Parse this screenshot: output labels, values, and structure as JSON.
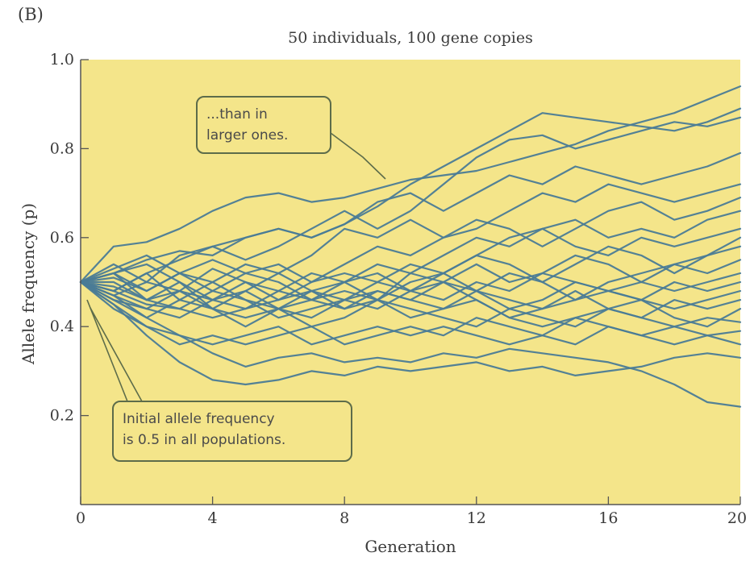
{
  "panel_letter": "(B)",
  "callouts": {
    "top": {
      "lines": [
        "...than in",
        "larger ones."
      ]
    },
    "bottom": {
      "lines": [
        "Initial allele frequency",
        "is 0.5 in all populations."
      ]
    }
  },
  "colors": {
    "plot_background": "#f4e58a",
    "line": "#4a7b96",
    "axis": "#555555",
    "callout_border": "#5d6c4a"
  },
  "chart_data": {
    "type": "line",
    "title": "50 individuals, 100 gene copies",
    "xlabel": "Generation",
    "ylabel": "Allele frequency (p)",
    "xlim": [
      0,
      20
    ],
    "ylim": [
      0,
      1.0
    ],
    "xticks": [
      0,
      4,
      8,
      12,
      16,
      20
    ],
    "yticks": [
      0.2,
      0.4,
      0.6,
      0.8,
      1.0
    ],
    "x": [
      0,
      1,
      2,
      3,
      4,
      5,
      6,
      7,
      8,
      9,
      10,
      11,
      12,
      13,
      14,
      15,
      16,
      17,
      18,
      19,
      20
    ],
    "series": [
      {
        "values": [
          0.5,
          0.58,
          0.59,
          0.62,
          0.66,
          0.69,
          0.7,
          0.68,
          0.69,
          0.71,
          0.73,
          0.74,
          0.75,
          0.77,
          0.79,
          0.81,
          0.84,
          0.86,
          0.88,
          0.91,
          0.94
        ]
      },
      {
        "values": [
          0.5,
          0.52,
          0.55,
          0.57,
          0.56,
          0.6,
          0.62,
          0.6,
          0.63,
          0.67,
          0.72,
          0.76,
          0.8,
          0.84,
          0.88,
          0.87,
          0.86,
          0.85,
          0.84,
          0.86,
          0.89
        ]
      },
      {
        "values": [
          0.5,
          0.54,
          0.5,
          0.56,
          0.58,
          0.55,
          0.58,
          0.62,
          0.66,
          0.62,
          0.66,
          0.72,
          0.78,
          0.82,
          0.83,
          0.8,
          0.82,
          0.84,
          0.86,
          0.85,
          0.87
        ]
      },
      {
        "values": [
          0.5,
          0.48,
          0.52,
          0.55,
          0.58,
          0.6,
          0.62,
          0.6,
          0.63,
          0.68,
          0.7,
          0.66,
          0.7,
          0.74,
          0.72,
          0.76,
          0.74,
          0.72,
          0.74,
          0.76,
          0.79
        ]
      },
      {
        "values": [
          0.5,
          0.52,
          0.48,
          0.52,
          0.5,
          0.54,
          0.52,
          0.56,
          0.62,
          0.6,
          0.64,
          0.6,
          0.62,
          0.66,
          0.7,
          0.68,
          0.72,
          0.7,
          0.68,
          0.7,
          0.72
        ]
      },
      {
        "values": [
          0.5,
          0.47,
          0.5,
          0.48,
          0.53,
          0.5,
          0.46,
          0.5,
          0.54,
          0.58,
          0.56,
          0.6,
          0.64,
          0.62,
          0.58,
          0.62,
          0.66,
          0.68,
          0.64,
          0.66,
          0.69
        ]
      },
      {
        "values": [
          0.5,
          0.53,
          0.56,
          0.52,
          0.55,
          0.52,
          0.54,
          0.5,
          0.52,
          0.5,
          0.54,
          0.52,
          0.56,
          0.6,
          0.62,
          0.64,
          0.6,
          0.62,
          0.6,
          0.64,
          0.66
        ]
      },
      {
        "values": [
          0.5,
          0.46,
          0.44,
          0.48,
          0.46,
          0.5,
          0.48,
          0.52,
          0.5,
          0.54,
          0.52,
          0.56,
          0.6,
          0.58,
          0.62,
          0.58,
          0.56,
          0.6,
          0.58,
          0.6,
          0.62
        ]
      },
      {
        "values": [
          0.5,
          0.52,
          0.46,
          0.5,
          0.44,
          0.48,
          0.52,
          0.48,
          0.46,
          0.5,
          0.48,
          0.52,
          0.56,
          0.54,
          0.5,
          0.54,
          0.58,
          0.56,
          0.52,
          0.56,
          0.6
        ]
      },
      {
        "values": [
          0.5,
          0.48,
          0.52,
          0.46,
          0.5,
          0.46,
          0.44,
          0.48,
          0.5,
          0.46,
          0.52,
          0.5,
          0.54,
          0.5,
          0.52,
          0.56,
          0.54,
          0.5,
          0.54,
          0.56,
          0.58
        ]
      },
      {
        "values": [
          0.5,
          0.51,
          0.48,
          0.52,
          0.48,
          0.52,
          0.5,
          0.46,
          0.44,
          0.48,
          0.46,
          0.5,
          0.48,
          0.52,
          0.5,
          0.46,
          0.5,
          0.52,
          0.54,
          0.52,
          0.55
        ]
      },
      {
        "values": [
          0.5,
          0.47,
          0.44,
          0.42,
          0.46,
          0.44,
          0.48,
          0.46,
          0.5,
          0.52,
          0.48,
          0.46,
          0.5,
          0.48,
          0.52,
          0.5,
          0.48,
          0.5,
          0.48,
          0.5,
          0.52
        ]
      },
      {
        "values": [
          0.5,
          0.52,
          0.54,
          0.5,
          0.46,
          0.48,
          0.44,
          0.46,
          0.48,
          0.46,
          0.5,
          0.52,
          0.48,
          0.44,
          0.46,
          0.5,
          0.48,
          0.46,
          0.5,
          0.48,
          0.5
        ]
      },
      {
        "values": [
          0.5,
          0.49,
          0.46,
          0.44,
          0.48,
          0.46,
          0.42,
          0.44,
          0.46,
          0.48,
          0.46,
          0.44,
          0.48,
          0.46,
          0.44,
          0.46,
          0.48,
          0.46,
          0.44,
          0.46,
          0.48
        ]
      },
      {
        "values": [
          0.5,
          0.46,
          0.42,
          0.46,
          0.44,
          0.4,
          0.44,
          0.42,
          0.46,
          0.44,
          0.48,
          0.5,
          0.46,
          0.42,
          0.44,
          0.48,
          0.44,
          0.42,
          0.46,
          0.44,
          0.46
        ]
      },
      {
        "values": [
          0.5,
          0.5,
          0.46,
          0.48,
          0.44,
          0.42,
          0.44,
          0.4,
          0.42,
          0.46,
          0.44,
          0.42,
          0.4,
          0.44,
          0.42,
          0.4,
          0.44,
          0.46,
          0.42,
          0.4,
          0.44
        ]
      },
      {
        "values": [
          0.5,
          0.48,
          0.45,
          0.44,
          0.42,
          0.44,
          0.46,
          0.48,
          0.44,
          0.46,
          0.42,
          0.44,
          0.46,
          0.42,
          0.4,
          0.42,
          0.44,
          0.42,
          0.4,
          0.42,
          0.41
        ]
      },
      {
        "values": [
          0.5,
          0.45,
          0.4,
          0.36,
          0.38,
          0.36,
          0.38,
          0.4,
          0.36,
          0.38,
          0.4,
          0.38,
          0.42,
          0.4,
          0.38,
          0.42,
          0.4,
          0.38,
          0.4,
          0.38,
          0.39
        ]
      },
      {
        "values": [
          0.5,
          0.47,
          0.42,
          0.38,
          0.36,
          0.38,
          0.4,
          0.36,
          0.38,
          0.4,
          0.38,
          0.4,
          0.38,
          0.36,
          0.38,
          0.36,
          0.4,
          0.38,
          0.36,
          0.38,
          0.36
        ]
      },
      {
        "values": [
          0.5,
          0.44,
          0.4,
          0.38,
          0.34,
          0.31,
          0.33,
          0.34,
          0.32,
          0.33,
          0.32,
          0.34,
          0.33,
          0.35,
          0.34,
          0.33,
          0.32,
          0.3,
          0.27,
          0.23,
          0.22
        ]
      },
      {
        "values": [
          0.5,
          0.45,
          0.38,
          0.32,
          0.28,
          0.27,
          0.28,
          0.3,
          0.29,
          0.31,
          0.3,
          0.31,
          0.32,
          0.3,
          0.31,
          0.29,
          0.3,
          0.31,
          0.33,
          0.34,
          0.33
        ]
      }
    ]
  }
}
